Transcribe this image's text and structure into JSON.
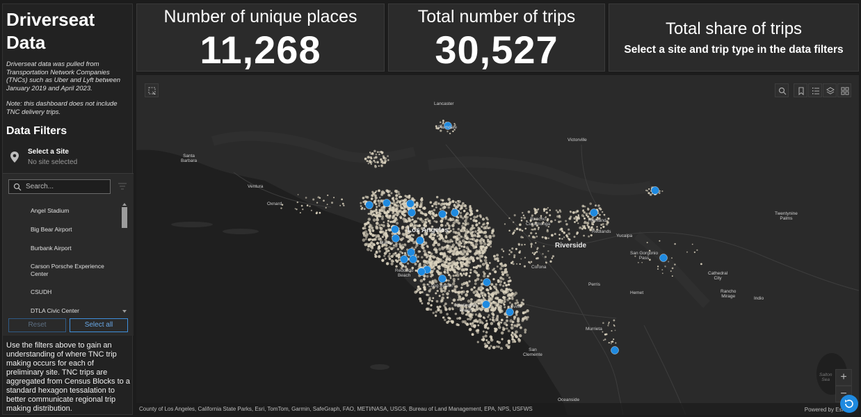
{
  "app": {
    "title": "Driverseat Data",
    "description": "Driverseat data was pulled from Transportation Network Companies (TNCs) such as Uber and Lyft between January 2019 and April 2023.",
    "note": "Note: this dashboard does not include TNC delivery trips."
  },
  "filters": {
    "heading": "Data Filters",
    "select_label": "Select a Site",
    "select_value": "No site selected",
    "search_placeholder": "Search...",
    "sites": [
      "Angel Stadium",
      "Big Bear Airport",
      "Burbank Airport",
      "Carson Porsche Experience Center",
      "CSUDH",
      "DTLA Civic Center"
    ],
    "reset_label": "Reset",
    "select_all_label": "Select all"
  },
  "help_text": "Use the filters above to gain an understanding of where TNC trip making occurs for each of preliminary site. TNC trips are aggregated from Census Blocks to a standard hexagon tessalation to better communicate regional trip making distribution.",
  "stats": {
    "places_label": "Number of unique places",
    "places_value": "11,268",
    "trips_label": "Total number of trips",
    "trips_value": "30,527",
    "share_label": "Total share of trips",
    "share_sub": "Select a site and trip type in the data filters"
  },
  "map": {
    "labels": {
      "lancaster": "Lancaster",
      "palmdale": "Palmdale",
      "victorville": "Victorville",
      "santa_barbara": "Santa\nBarbara",
      "ventura": "Ventura",
      "oxnard": "Oxnard",
      "los_angeles": "Los Angeles",
      "riverside": "Riverside",
      "rancho_cucamonga": "Rancho\nCucamonga",
      "highland": "Highland",
      "redlands": "Redlands",
      "yucaipa": "Yucaipa",
      "twentynine_palms": "Twentynine\nPalms",
      "san_gorgonio_pass": "San Gorgonio\nPass",
      "corona": "Corona",
      "perris": "Perris",
      "hemet": "Hemet",
      "cathedral_city": "Cathedral\nCity",
      "rancho_mirage": "Rancho\nMirage",
      "indio": "Indio",
      "murrieta": "Murrieta",
      "san_clemente": "San\nClemente",
      "oceanside": "Oceanside",
      "salton_sea": "Salton\nSea",
      "malibu": "Malibu",
      "irvine": "Irvine",
      "huntington_beach": "Huntington\nBeach",
      "redondo_beach": "Redondo\nBeach",
      "long_beach": "Long Beach"
    },
    "attribution": "County of Los Angeles, California State Parks, Esri, TomTom, Garmin, SafeGraph, FAO, METI/NASA, USGS, Bureau of Land Management, EPA, NPS, USFWS",
    "powered_by": "Powered by Esri",
    "zoom_in": "+",
    "zoom_out": "−",
    "site_marker_color": "#1f8ae0",
    "hex_color": "#d8d0bc"
  }
}
